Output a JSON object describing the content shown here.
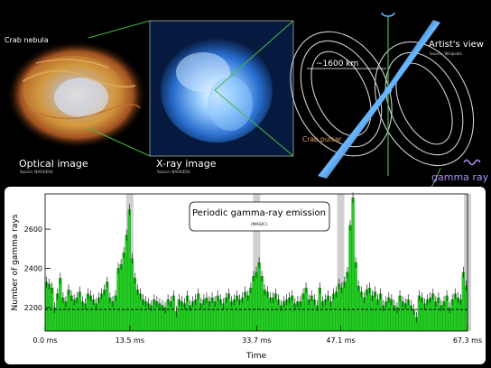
{
  "panels": {
    "optical": {
      "caption": "Optical image",
      "credit": "Source: NASA/ESA",
      "label": "Crab nebula"
    },
    "xray": {
      "caption": "X-ray image",
      "credit": "Source: NASA/ESA"
    },
    "artist": {
      "caption": "Artist's view",
      "credit": "Source: Wikipedia",
      "distance": "~1600 km",
      "pulsar_label": "Crab pulsar",
      "gamma_label": "gamma ray"
    }
  },
  "colors": {
    "bars": "#22cc22",
    "bar_edge": "#118811",
    "nebula": "#d8a040",
    "xray": "#6fb8ff",
    "beam": "#3a8fe0",
    "gamma": "#b090ff",
    "guide": "#44bb44"
  },
  "chart_data": {
    "type": "bar",
    "title": "Periodic gamma-ray emission",
    "subtitle": "(MAGIC)",
    "xlabel": "Time",
    "ylabel": "Number of gamma rays",
    "ylim": [
      2080,
      2780
    ],
    "xlim": [
      0,
      67.3
    ],
    "yticks": [
      2200,
      2400,
      2600
    ],
    "xticks": [
      {
        "value": 0,
        "label": "0.0 ms"
      },
      {
        "value": 13.5,
        "label": "13.5 ms"
      },
      {
        "value": 33.7,
        "label": "33.7 ms"
      },
      {
        "value": 47.1,
        "label": "47.1 ms"
      },
      {
        "value": 67.3,
        "label": "67.3 ms"
      }
    ],
    "baseline": 2190,
    "highlight_bands": [
      13.5,
      33.7,
      47.1,
      67.3
    ],
    "values": [
      2330,
      2320,
      2300,
      2200,
      2270,
      2350,
      2250,
      2230,
      2290,
      2260,
      2240,
      2250,
      2280,
      2230,
      2220,
      2270,
      2260,
      2240,
      2220,
      2250,
      2270,
      2290,
      2330,
      2250,
      2230,
      2260,
      2400,
      2420,
      2480,
      2570,
      2700,
      2450,
      2350,
      2290,
      2270,
      2240,
      2230,
      2220,
      2210,
      2240,
      2230,
      2220,
      2210,
      2200,
      2240,
      2230,
      2260,
      2180,
      2240,
      2230,
      2220,
      2260,
      2210,
      2230,
      2240,
      2270,
      2220,
      2240,
      2250,
      2230,
      2250,
      2230,
      2260,
      2240,
      2220,
      2250,
      2270,
      2230,
      2240,
      2260,
      2240,
      2250,
      2280,
      2260,
      2300,
      2360,
      2380,
      2430,
      2360,
      2290,
      2280,
      2250,
      2250,
      2270,
      2240,
      2210,
      2230,
      2240,
      2250,
      2260,
      2220,
      2230,
      2230,
      2270,
      2300,
      2240,
      2260,
      2240,
      2210,
      2300,
      2230,
      2240,
      2260,
      2230,
      2270,
      2280,
      2320,
      2300,
      2330,
      2380,
      2620,
      2760,
      2430,
      2310,
      2280,
      2250,
      2290,
      2300,
      2260,
      2280,
      2240,
      2270,
      2210,
      2230,
      2250,
      2240,
      2210,
      2200,
      2260,
      2230,
      2220,
      2240,
      2210,
      2190,
      2150,
      2260,
      2250,
      2220,
      2240,
      2250,
      2270,
      2230,
      2250,
      2210,
      2230,
      2260,
      2200,
      2240,
      2270,
      2250,
      2240,
      2380,
      2310
    ]
  }
}
